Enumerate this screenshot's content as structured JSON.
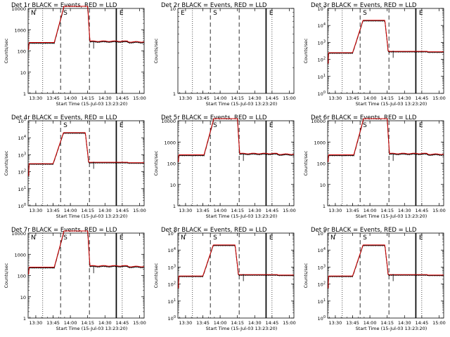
{
  "colors": {
    "events": "#000000",
    "lld": "#d40000",
    "background": "#ffffff"
  },
  "time_ticks": [
    "13:30",
    "13:45",
    "14:00",
    "14:15",
    "14:30",
    "14:45",
    "15:00"
  ],
  "xlabel": "Start Time (15-Jul-03 13:23:20)",
  "ylabel": "Counts/sec",
  "markers": {
    "S": "S",
    "E": "E",
    "N": "N"
  },
  "chart_data": [
    {
      "type": "line",
      "title": "Det 1r BLACK = Events, RED = LLD",
      "scale": "dec",
      "ylim": [
        1,
        10000
      ],
      "yticks": [
        {
          "label": "1",
          "v": 1
        },
        {
          "label": "10",
          "v": 10
        },
        {
          "label": "100",
          "v": 100
        },
        {
          "label": "1000",
          "v": 1000
        },
        {
          "label": "10000",
          "v": 10000
        }
      ],
      "markers": [
        "N",
        "S",
        "E"
      ],
      "curve": "sat"
    },
    {
      "type": "line",
      "title": "Det 2r BLACK = Events, RED = LLD",
      "scale": "dec",
      "ylim": [
        1,
        10
      ],
      "yticks": [
        {
          "label": "1",
          "v": 1
        },
        {
          "label": "10",
          "v": 10
        }
      ],
      "markers": [
        "E",
        "S",
        "E"
      ],
      "curve": "none"
    },
    {
      "type": "line",
      "title": "Det 3r BLACK = Events, RED = LLD",
      "scale": "exp",
      "ylim": [
        1,
        100000
      ],
      "yticks": [
        {
          "label": "10",
          "sup": "0",
          "v": 1
        },
        {
          "label": "10",
          "sup": "1",
          "v": 10
        },
        {
          "label": "10",
          "sup": "2",
          "v": 100
        },
        {
          "label": "10",
          "sup": "3",
          "v": 1000
        },
        {
          "label": "10",
          "sup": "4",
          "v": 10000
        },
        {
          "label": "10",
          "sup": "5",
          "v": 100000
        }
      ],
      "markers": [
        "S",
        "E"
      ],
      "curve": "plateau",
      "plateau": 20000,
      "base": 250
    },
    {
      "type": "line",
      "title": "Det 4r BLACK = Events, RED = LLD",
      "scale": "exp",
      "ylim": [
        1,
        100000
      ],
      "yticks": [
        {
          "label": "10",
          "sup": "0",
          "v": 1
        },
        {
          "label": "10",
          "sup": "1",
          "v": 10
        },
        {
          "label": "10",
          "sup": "2",
          "v": 100
        },
        {
          "label": "10",
          "sup": "3",
          "v": 1000
        },
        {
          "label": "10",
          "sup": "4",
          "v": 10000
        },
        {
          "label": "10",
          "sup": "5",
          "v": 100000
        }
      ],
      "markers": [
        "S",
        "E"
      ],
      "curve": "plateau",
      "plateau": 20000,
      "base": 300
    },
    {
      "type": "line",
      "title": "Det 5r BLACK = Events, RED = LLD",
      "scale": "dec",
      "ylim": [
        1,
        10000
      ],
      "yticks": [
        {
          "label": "1",
          "v": 1
        },
        {
          "label": "10",
          "v": 10
        },
        {
          "label": "100",
          "v": 100
        },
        {
          "label": "1000",
          "v": 1000
        },
        {
          "label": "10000",
          "v": 10000
        }
      ],
      "markers": [
        "S",
        "E"
      ],
      "curve": "sat"
    },
    {
      "type": "line",
      "title": "Det 6r BLACK = Events, RED = LLD",
      "scale": "dec",
      "ylim": [
        1,
        10000
      ],
      "yticks": [
        {
          "label": "1",
          "v": 1
        },
        {
          "label": "10",
          "v": 10
        },
        {
          "label": "100",
          "v": 100
        },
        {
          "label": "1000",
          "v": 1000
        },
        {
          "label": "10000",
          "v": 10000
        }
      ],
      "markers": [
        "S",
        "E"
      ],
      "curve": "sat"
    },
    {
      "type": "line",
      "title": "Det 7r BLACK = Events, RED = LLD",
      "scale": "dec",
      "ylim": [
        1,
        10000
      ],
      "yticks": [
        {
          "label": "1",
          "v": 1
        },
        {
          "label": "10",
          "v": 10
        },
        {
          "label": "100",
          "v": 100
        },
        {
          "label": "1000",
          "v": 1000
        },
        {
          "label": "10000",
          "v": 10000
        }
      ],
      "markers": [
        "N",
        "S",
        "E"
      ],
      "curve": "sat"
    },
    {
      "type": "line",
      "title": "Det 8r BLACK = Events, RED = LLD",
      "scale": "exp",
      "ylim": [
        1,
        100000
      ],
      "yticks": [
        {
          "label": "10",
          "sup": "0",
          "v": 1
        },
        {
          "label": "10",
          "sup": "1",
          "v": 10
        },
        {
          "label": "10",
          "sup": "2",
          "v": 100
        },
        {
          "label": "10",
          "sup": "3",
          "v": 1000
        },
        {
          "label": "10",
          "sup": "4",
          "v": 10000
        },
        {
          "label": "10",
          "sup": "5",
          "v": 100000
        }
      ],
      "markers": [
        "N",
        "S",
        "E"
      ],
      "curve": "plateau",
      "plateau": 20000,
      "base": 300
    },
    {
      "type": "line",
      "title": "Det 9r BLACK = Events, RED = LLD",
      "scale": "exp",
      "ylim": [
        1,
        100000
      ],
      "yticks": [
        {
          "label": "10",
          "sup": "0",
          "v": 1
        },
        {
          "label": "10",
          "sup": "1",
          "v": 10
        },
        {
          "label": "10",
          "sup": "2",
          "v": 100
        },
        {
          "label": "10",
          "sup": "3",
          "v": 1000
        },
        {
          "label": "10",
          "sup": "4",
          "v": 10000
        },
        {
          "label": "10",
          "sup": "5",
          "v": 100000
        }
      ],
      "markers": [
        "N",
        "S",
        "E"
      ],
      "curve": "plateau",
      "plateau": 20000,
      "base": 300
    }
  ]
}
